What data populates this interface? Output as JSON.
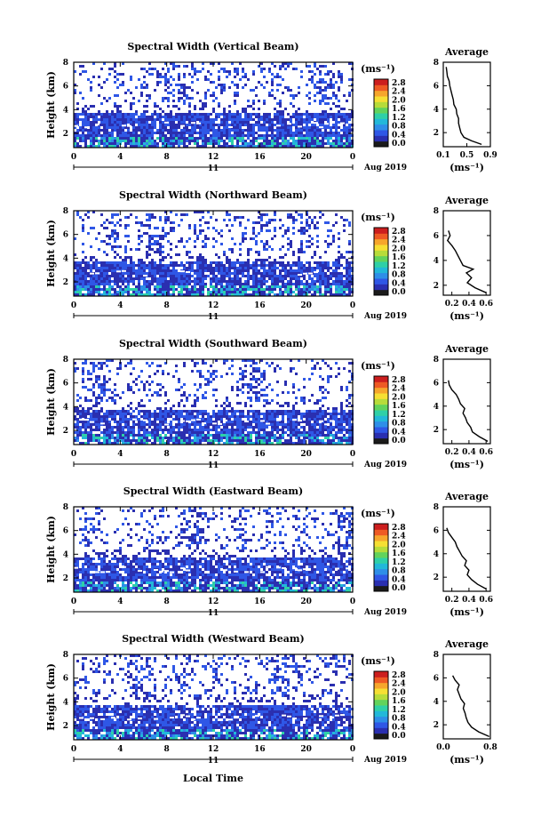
{
  "figure": {
    "date_label": "Aug 2019",
    "day_label": "11",
    "xlabel_bottom": "Local Time",
    "colorbar_colors": [
      "#1b1b1b",
      "#2a2fb0",
      "#2f57e6",
      "#2e8ee8",
      "#22b8d9",
      "#2fd0a7",
      "#62d35c",
      "#b7dc3a",
      "#f6df33",
      "#f6a62c",
      "#ee5a24",
      "#cc1e1e"
    ]
  },
  "chart_data": [
    {
      "type": "heatmap",
      "title": "Spectral Width (Vertical Beam)",
      "ylabel": "Height (km)",
      "x_ticks": [
        "0",
        "4",
        "8",
        "12",
        "16",
        "20",
        "0"
      ],
      "y_ticks": [
        "2",
        "4",
        "6",
        "8"
      ],
      "xlim": [
        0,
        24
      ],
      "ylim": [
        0.8,
        8
      ],
      "colorbar": {
        "unit": "(ms⁻¹)",
        "ticks": [
          "0.0",
          "0.4",
          "0.8",
          "1.2",
          "1.6",
          "2.0",
          "2.4",
          "2.8"
        ]
      },
      "average_profile": {
        "title": "Average",
        "xlabel": "(ms⁻¹)",
        "x_ticks": [
          "0.1",
          "0.5",
          "0.9"
        ],
        "xlim": [
          0.1,
          0.9
        ],
        "y_ticks": [
          "2",
          "4",
          "6",
          "8"
        ],
        "ylim": [
          0.8,
          8
        ],
        "height": [
          1.0,
          1.3,
          1.6,
          2.0,
          2.4,
          2.8,
          3.2,
          3.6,
          4.0,
          4.4,
          4.8,
          5.2,
          5.6,
          6.0,
          6.4,
          6.8,
          7.2,
          7.6
        ],
        "width": [
          0.75,
          0.58,
          0.45,
          0.4,
          0.38,
          0.36,
          0.36,
          0.33,
          0.32,
          0.28,
          0.27,
          0.25,
          0.23,
          0.21,
          0.2,
          0.17,
          0.16,
          0.15
        ]
      }
    },
    {
      "type": "heatmap",
      "title": "Spectral Width (Northward Beam)",
      "ylabel": "Height (km)",
      "x_ticks": [
        "0",
        "4",
        "8",
        "12",
        "16",
        "20",
        "0"
      ],
      "y_ticks": [
        "2",
        "4",
        "6",
        "8"
      ],
      "xlim": [
        0,
        24
      ],
      "ylim": [
        0.8,
        8
      ],
      "colorbar": {
        "unit": "(ms⁻¹)",
        "ticks": [
          "0.0",
          "0.4",
          "0.8",
          "1.2",
          "1.6",
          "2.0",
          "2.4",
          "2.8"
        ]
      },
      "average_profile": {
        "title": "Average",
        "xlabel": "(ms⁻¹)",
        "x_ticks": [
          "0.2",
          "0.4",
          "0.6"
        ],
        "xlim": [
          0.1,
          0.65
        ],
        "y_ticks": [
          "2",
          "4",
          "6",
          "8"
        ],
        "ylim": [
          1.2,
          8
        ],
        "height": [
          1.4,
          1.8,
          2.2,
          2.6,
          3.0,
          3.3,
          3.6,
          4.0,
          4.4,
          4.8,
          5.2,
          5.6,
          6.0,
          6.4
        ],
        "width": [
          0.6,
          0.47,
          0.38,
          0.43,
          0.37,
          0.45,
          0.33,
          0.3,
          0.27,
          0.24,
          0.2,
          0.15,
          0.18,
          0.16
        ]
      }
    },
    {
      "type": "heatmap",
      "title": "Spectral Width (Southward Beam)",
      "ylabel": "Height (km)",
      "x_ticks": [
        "0",
        "4",
        "8",
        "12",
        "16",
        "20",
        "0"
      ],
      "y_ticks": [
        "2",
        "4",
        "6",
        "8"
      ],
      "xlim": [
        0,
        24
      ],
      "ylim": [
        0.8,
        8
      ],
      "colorbar": {
        "unit": "(ms⁻¹)",
        "ticks": [
          "0.0",
          "0.4",
          "0.8",
          "1.2",
          "1.6",
          "2.0",
          "2.4",
          "2.8"
        ]
      },
      "average_profile": {
        "title": "Average",
        "xlabel": "(ms⁻¹)",
        "x_ticks": [
          "0.2",
          "0.4",
          "0.6"
        ],
        "xlim": [
          0.1,
          0.65
        ],
        "y_ticks": [
          "2",
          "4",
          "6",
          "8"
        ],
        "ylim": [
          0.8,
          8
        ],
        "height": [
          1.0,
          1.4,
          1.8,
          2.2,
          2.6,
          3.0,
          3.4,
          3.8,
          4.2,
          4.6,
          5.0,
          5.4,
          5.8,
          6.2
        ],
        "width": [
          0.62,
          0.52,
          0.44,
          0.42,
          0.38,
          0.36,
          0.33,
          0.35,
          0.3,
          0.28,
          0.25,
          0.2,
          0.17,
          0.16
        ]
      }
    },
    {
      "type": "heatmap",
      "title": "Spectral Width (Eastward Beam)",
      "ylabel": "Height (km)",
      "x_ticks": [
        "0",
        "4",
        "8",
        "12",
        "16",
        "20",
        "0"
      ],
      "y_ticks": [
        "2",
        "4",
        "6",
        "8"
      ],
      "xlim": [
        0,
        24
      ],
      "ylim": [
        0.8,
        8
      ],
      "colorbar": {
        "unit": "(ms⁻¹)",
        "ticks": [
          "0.0",
          "0.4",
          "0.8",
          "1.2",
          "1.6",
          "2.0",
          "2.4",
          "2.8"
        ]
      },
      "average_profile": {
        "title": "Average",
        "xlabel": "(ms⁻¹)",
        "x_ticks": [
          "0.2",
          "0.4",
          "0.6"
        ],
        "xlim": [
          0.1,
          0.65
        ],
        "y_ticks": [
          "2",
          "4",
          "6",
          "8"
        ],
        "ylim": [
          0.8,
          8
        ],
        "height": [
          1.0,
          1.4,
          1.8,
          2.2,
          2.6,
          3.0,
          3.4,
          3.8,
          4.2,
          4.6,
          5.0,
          5.4,
          5.8,
          6.2
        ],
        "width": [
          0.6,
          0.5,
          0.43,
          0.38,
          0.4,
          0.35,
          0.37,
          0.32,
          0.29,
          0.26,
          0.24,
          0.2,
          0.16,
          0.14
        ]
      }
    },
    {
      "type": "heatmap",
      "title": "Spectral Width (Westward Beam)",
      "ylabel": "Height (km)",
      "x_ticks": [
        "0",
        "4",
        "8",
        "12",
        "16",
        "20",
        "0"
      ],
      "y_ticks": [
        "2",
        "4",
        "6",
        "8"
      ],
      "xlim": [
        0,
        24
      ],
      "ylim": [
        0.8,
        8
      ],
      "colorbar": {
        "unit": "(ms⁻¹)",
        "ticks": [
          "0.0",
          "0.4",
          "0.8",
          "1.2",
          "1.6",
          "2.0",
          "2.4",
          "2.8"
        ]
      },
      "average_profile": {
        "title": "Average",
        "xlabel": "(ms⁻¹)",
        "x_ticks": [
          "0.0",
          "0.8"
        ],
        "xlim": [
          0.0,
          0.8
        ],
        "y_ticks": [
          "2",
          "4",
          "6",
          "8"
        ],
        "ylim": [
          0.8,
          8
        ],
        "height": [
          1.0,
          1.4,
          1.8,
          2.2,
          2.6,
          3.0,
          3.4,
          3.8,
          4.2,
          4.6,
          5.0,
          5.4,
          5.8,
          6.2
        ],
        "width": [
          0.78,
          0.6,
          0.48,
          0.42,
          0.39,
          0.37,
          0.34,
          0.36,
          0.3,
          0.27,
          0.24,
          0.27,
          0.2,
          0.16
        ]
      }
    }
  ]
}
